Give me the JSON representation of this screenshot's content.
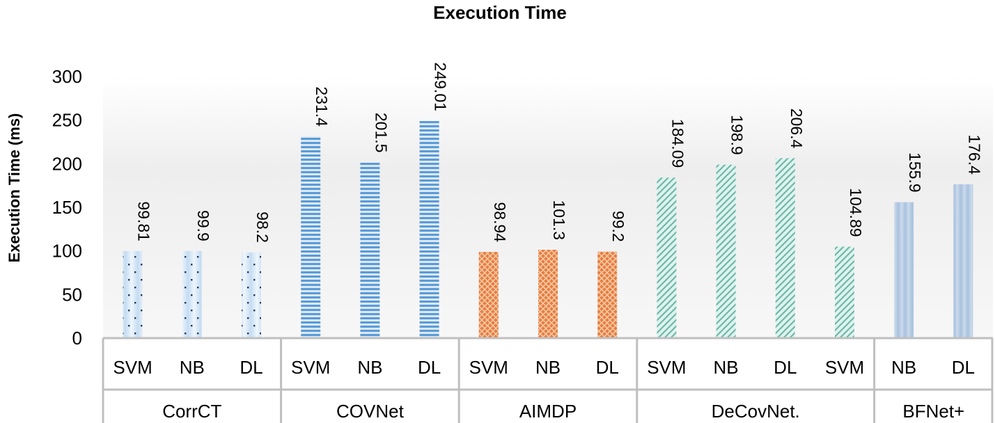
{
  "chart_data": {
    "type": "bar",
    "title": "Execution Time",
    "ylabel": "Execution Time (ms)",
    "xlabel": "",
    "ylim": [
      0,
      300
    ],
    "yticks": [
      0,
      50,
      100,
      150,
      200,
      250,
      300
    ],
    "grid": false,
    "groups": [
      {
        "name": "CorrCT",
        "pattern": "dots",
        "bars": [
          {
            "label": "SVM",
            "value": 99.81,
            "display": "99.81"
          },
          {
            "label": "NB",
            "value": 99.9,
            "display": "99.9"
          },
          {
            "label": "DL",
            "value": 98.2,
            "display": "98.2"
          }
        ]
      },
      {
        "name": "COVNet",
        "pattern": "hstripes",
        "bars": [
          {
            "label": "SVM",
            "value": 231.4,
            "display": "231.4"
          },
          {
            "label": "NB",
            "value": 201.5,
            "display": "201.5"
          },
          {
            "label": "DL",
            "value": 249.01,
            "display": "249.01"
          }
        ]
      },
      {
        "name": "AIMDP",
        "pattern": "crosshatch",
        "bars": [
          {
            "label": "SVM",
            "value": 98.94,
            "display": "98.94"
          },
          {
            "label": "NB",
            "value": 101.3,
            "display": "101.3"
          },
          {
            "label": "DL",
            "value": 99.2,
            "display": "99.2"
          }
        ]
      },
      {
        "name": "DeCovNet.",
        "pattern": "diag",
        "bars": [
          {
            "label": "SVM",
            "value": 184.09,
            "display": "184.09"
          },
          {
            "label": "NB",
            "value": 198.9,
            "display": "198.9"
          },
          {
            "label": "DL",
            "value": 206.4,
            "display": "206.4"
          },
          {
            "label": "SVM",
            "value": 104.89,
            "display": "104.89"
          }
        ]
      },
      {
        "name": "BFNet+",
        "pattern": "solid",
        "bars": [
          {
            "label": "NB",
            "value": 155.9,
            "display": "155.9"
          },
          {
            "label": "DL",
            "value": 176.4,
            "display": "176.4"
          }
        ]
      }
    ],
    "colors": {
      "blue": "#5b9bd5",
      "light_blue": "#bdd7ee",
      "orange": "#ed7d31",
      "teal": "#9fd6c9",
      "steel": "#a9c0dc",
      "axis": "#bfbfbf"
    }
  }
}
